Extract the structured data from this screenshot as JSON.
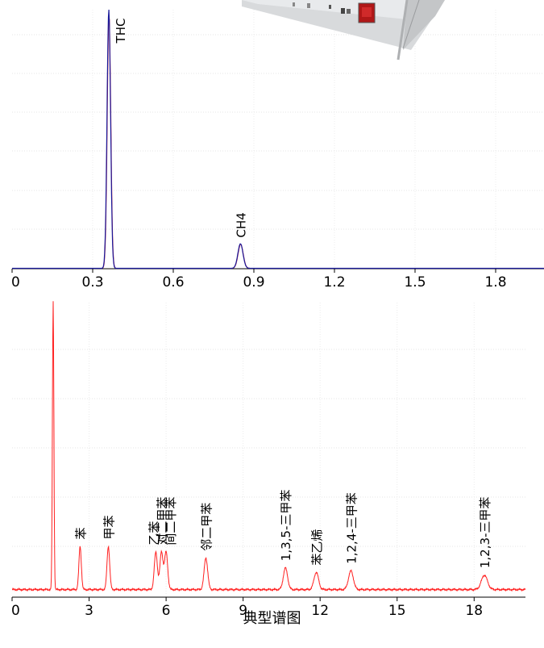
{
  "chart_data": [
    {
      "type": "line",
      "xlim": [
        0,
        1.98
      ],
      "ylim": [
        0,
        100
      ],
      "xticks": [
        "0",
        "0.3",
        "0.6",
        "0.9",
        "1.2",
        "1.5",
        "1.8"
      ],
      "grid": true,
      "series_colors": [
        "#1a1a9a",
        "#c02040"
      ],
      "peaks": [
        {
          "label": "THC",
          "x": 0.36,
          "height": 100
        },
        {
          "label": "CH4",
          "x": 0.85,
          "height": 9.5
        }
      ],
      "inset_image": "instrument-photo"
    },
    {
      "type": "line",
      "xlim": [
        0,
        20
      ],
      "ylim": [
        0,
        100
      ],
      "xticks": [
        "0",
        "3",
        "6",
        "9",
        "12",
        "15",
        "18"
      ],
      "grid": true,
      "series_colors": [
        "#ff2020"
      ],
      "solvent_peak": {
        "x": 1.6,
        "height": 100
      },
      "peaks": [
        {
          "label": "苯",
          "x": 2.65,
          "height": 15
        },
        {
          "label": "甲苯",
          "x": 3.75,
          "height": 15
        },
        {
          "label": "乙苯",
          "x": 5.6,
          "height": 13
        },
        {
          "label": "对二甲苯",
          "x": 5.82,
          "height": 13
        },
        {
          "label": "间二甲苯",
          "x": 6.0,
          "height": 13
        },
        {
          "label": "邻二甲苯",
          "x": 7.55,
          "height": 11
        },
        {
          "label": "1,3,5-三甲苯",
          "x": 10.65,
          "height": 7.5
        },
        {
          "label": "苯乙烯",
          "x": 11.85,
          "height": 6
        },
        {
          "label": "1,2,4-三甲苯",
          "x": 13.2,
          "height": 6.5
        },
        {
          "label": "1,2,3-三甲苯",
          "x": 18.4,
          "height": 5
        }
      ]
    }
  ],
  "caption": "典型谱图"
}
